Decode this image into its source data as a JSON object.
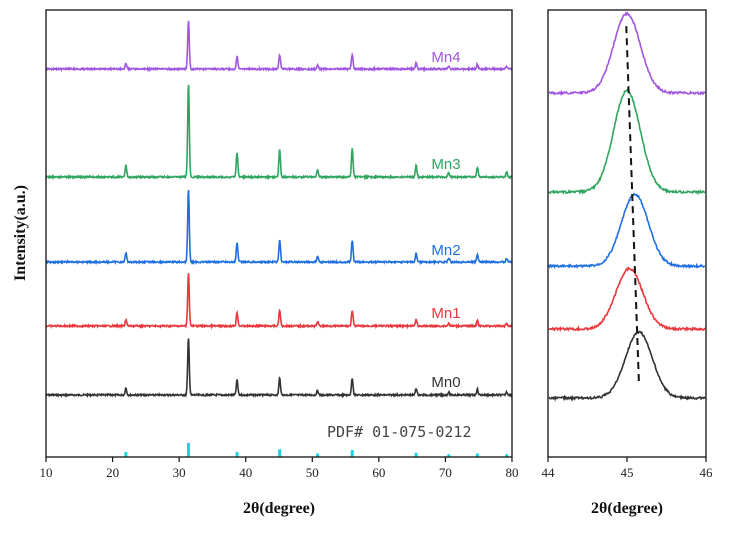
{
  "chart_data": [
    {
      "type": "line",
      "panel": "main",
      "xlabel": "2θ(degree)",
      "ylabel": "Intensity(a.u.)",
      "xlim": [
        10,
        80
      ],
      "xticks": [
        10,
        20,
        30,
        40,
        50,
        60,
        70,
        80
      ],
      "peaks": [
        {
          "x": 22.0,
          "h": 0.12
        },
        {
          "x": 31.4,
          "h": 1.0
        },
        {
          "x": 38.7,
          "h": 0.26
        },
        {
          "x": 45.1,
          "h": 0.3
        },
        {
          "x": 50.8,
          "h": 0.08
        },
        {
          "x": 56.0,
          "h": 0.3
        },
        {
          "x": 65.6,
          "h": 0.12
        },
        {
          "x": 70.5,
          "h": 0.05
        },
        {
          "x": 74.8,
          "h": 0.1
        },
        {
          "x": 79.2,
          "h": 0.05
        }
      ],
      "series": [
        {
          "name": "Mn0",
          "color": "#333333"
        },
        {
          "name": "Mn1",
          "color": "#e8383d"
        },
        {
          "name": "Mn2",
          "color": "#1f6fe0"
        },
        {
          "name": "Mn3",
          "color": "#2fa55f"
        },
        {
          "name": "Mn4",
          "color": "#a056e0"
        }
      ],
      "reference": {
        "label": "PDF# 01-075-0212",
        "color": "#19d3e0",
        "positions": [
          22.0,
          31.4,
          38.7,
          45.1,
          50.8,
          56.0,
          65.6,
          70.5,
          74.8,
          79.2
        ],
        "heights": [
          0.35,
          1.0,
          0.35,
          0.55,
          0.25,
          0.5,
          0.3,
          0.2,
          0.25,
          0.2
        ]
      }
    },
    {
      "type": "line",
      "panel": "zoom",
      "xlabel": "2θ(degree)",
      "xlim": [
        44,
        46
      ],
      "xticks": [
        44,
        45,
        46
      ],
      "peak_width": 0.17,
      "series": [
        {
          "name": "Mn0",
          "color": "#333333",
          "center": 45.15,
          "height": 0.6
        },
        {
          "name": "Mn1",
          "color": "#e8383d",
          "center": 45.03,
          "height": 0.55
        },
        {
          "name": "Mn2",
          "color": "#1f6fe0",
          "center": 45.1,
          "height": 0.65
        },
        {
          "name": "Mn3",
          "color": "#2fa55f",
          "center": 45.0,
          "height": 0.92
        },
        {
          "name": "Mn4",
          "color": "#a056e0",
          "center": 45.0,
          "height": 0.72
        }
      ],
      "guide": {
        "from": 45.15,
        "to": 44.99
      }
    }
  ]
}
